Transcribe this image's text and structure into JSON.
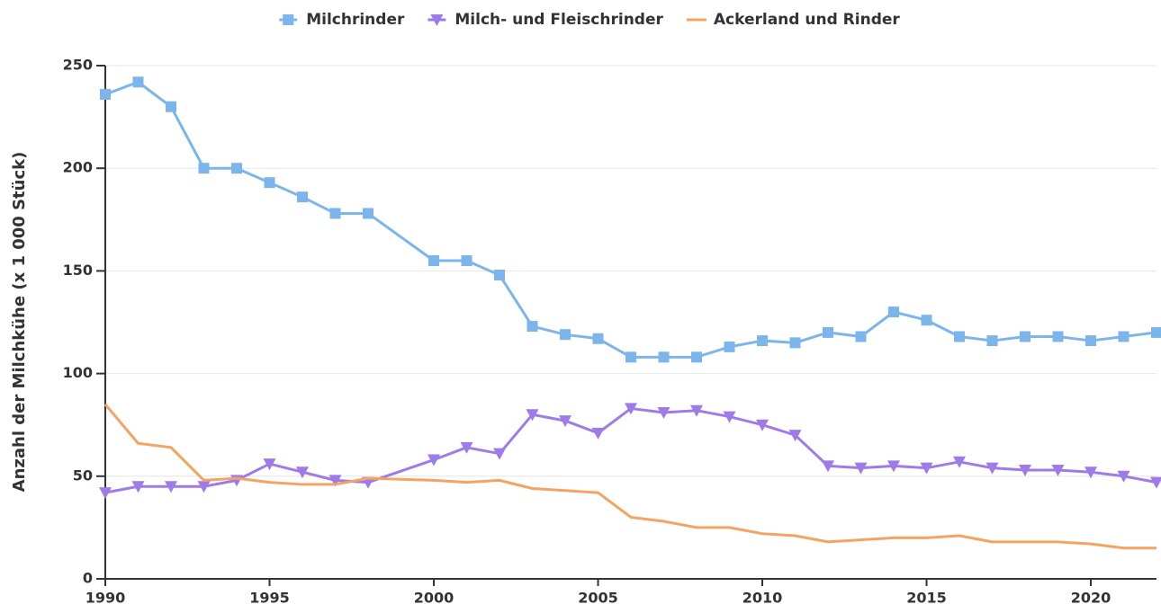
{
  "chart_data": {
    "type": "line",
    "y_label": "Anzahl der Milchkühe (x 1 000 Stück)",
    "x": [
      1990,
      1991,
      1992,
      1993,
      1994,
      1995,
      1996,
      1997,
      1998,
      2000,
      2001,
      2002,
      2003,
      2004,
      2005,
      2006,
      2007,
      2008,
      2009,
      2010,
      2011,
      2012,
      2013,
      2014,
      2015,
      2016,
      2017,
      2018,
      2019,
      2020,
      2021,
      2022
    ],
    "series": [
      {
        "name": "Milchrinder",
        "color": "#7cb5ec",
        "marker": "square",
        "values": [
          236,
          242,
          230,
          200,
          200,
          193,
          186,
          178,
          178,
          155,
          155,
          148,
          123,
          119,
          117,
          108,
          108,
          108,
          113,
          116,
          115,
          120,
          118,
          130,
          126,
          118,
          116,
          118,
          118,
          116,
          118,
          120
        ]
      },
      {
        "name": "Milch- und Fleischrinder",
        "color": "#9e7be8",
        "marker": "triangle-down",
        "values": [
          42,
          45,
          45,
          45,
          48,
          56,
          52,
          48,
          47,
          58,
          64,
          61,
          80,
          77,
          71,
          83,
          81,
          82,
          79,
          75,
          70,
          55,
          54,
          55,
          54,
          57,
          54,
          53,
          53,
          52,
          50,
          47
        ]
      },
      {
        "name": "Ackerland und Rinder",
        "color": "#f4a462",
        "values": [
          85,
          66,
          64,
          48,
          49,
          47,
          46,
          46,
          49,
          48,
          47,
          48,
          44,
          43,
          42,
          30,
          28,
          25,
          25,
          22,
          21,
          18,
          19,
          20,
          20,
          21,
          18,
          18,
          18,
          17,
          15,
          15
        ]
      }
    ],
    "xlim": [
      1990,
      2022
    ],
    "xticks": [
      1990,
      1995,
      2000,
      2005,
      2010,
      2015,
      2020
    ],
    "ylim": [
      0,
      250
    ],
    "yticks": [
      0,
      50,
      100,
      150,
      200,
      250
    ],
    "grid": true,
    "legend": "top"
  }
}
